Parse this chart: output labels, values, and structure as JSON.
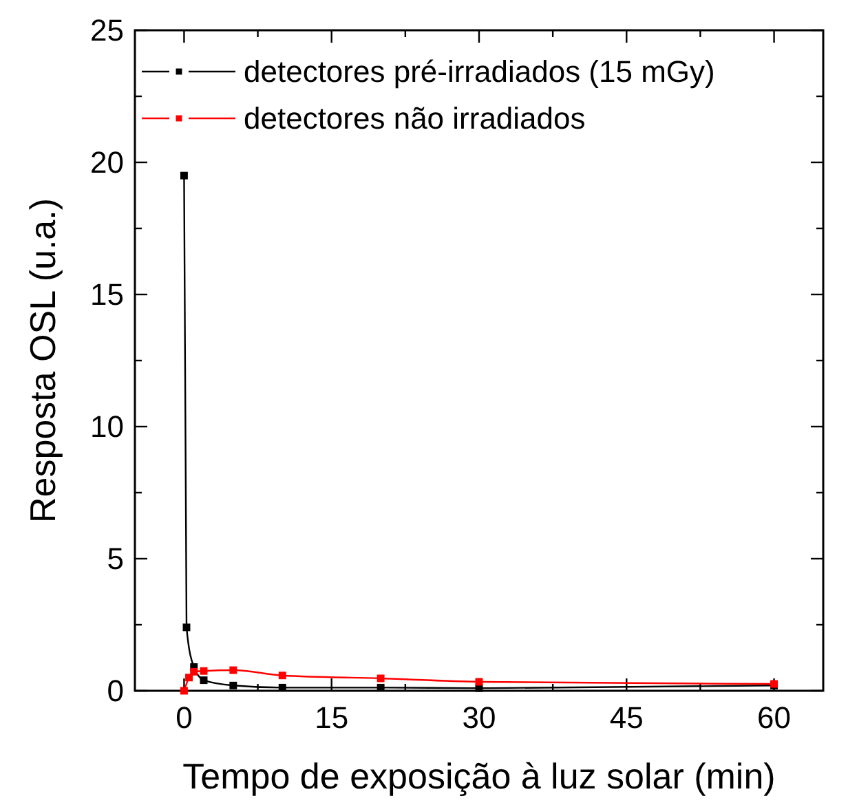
{
  "chart_data": {
    "type": "line",
    "xlabel": "Tempo de exposição à luz solar (min)",
    "ylabel": "Resposta OSL (u.a.)",
    "xlim": [
      -5,
      65
    ],
    "xticks": [
      0,
      {
        "value": 7.5,
        "label": null
      },
      15,
      {
        "value": 22.5,
        "label": null
      },
      30,
      {
        "value": 37.5,
        "label": null
      },
      45,
      {
        "value": 52.5,
        "label": null
      },
      60
    ],
    "ylim": [
      0,
      25
    ],
    "yticks": [
      0,
      {
        "value": 2.5,
        "label": null
      },
      5,
      {
        "value": 7.5,
        "label": null
      },
      10,
      {
        "value": 12.5,
        "label": null
      },
      15,
      {
        "value": 17.5,
        "label": null
      },
      20,
      {
        "value": 22.5,
        "label": null
      },
      25
    ],
    "legend": "top right",
    "marker": "square",
    "grid": false,
    "series": [
      {
        "name": "detectores pré-irradiados (15 mGy)",
        "color": "#000000",
        "x": [
          0,
          0.25,
          1,
          2,
          5,
          10,
          20,
          30,
          60
        ],
        "values": [
          19.5,
          2.4,
          0.9,
          0.4,
          0.2,
          0.12,
          0.12,
          0.1,
          0.2
        ]
      },
      {
        "name": "detectores não irradiados",
        "color": "#ff0000",
        "x": [
          0,
          0.5,
          1,
          2,
          5,
          10,
          20,
          30,
          60
        ],
        "values": [
          0,
          0.5,
          0.72,
          0.75,
          0.78,
          0.58,
          0.47,
          0.34,
          0.26
        ]
      }
    ]
  }
}
